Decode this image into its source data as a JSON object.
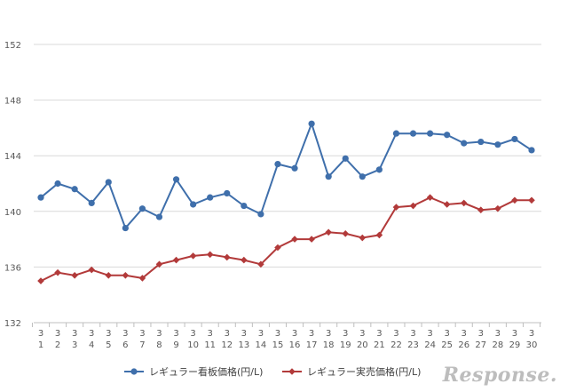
{
  "chart_data": {
    "type": "line",
    "categories": [
      "3\n1",
      "3\n2",
      "3\n3",
      "3\n4",
      "3\n5",
      "3\n6",
      "3\n7",
      "3\n8",
      "3\n9",
      "3\n10",
      "3\n11",
      "3\n12",
      "3\n13",
      "3\n14",
      "3\n15",
      "3\n16",
      "3\n17",
      "3\n18",
      "3\n19",
      "3\n20",
      "3\n21",
      "3\n22",
      "3\n23",
      "3\n24",
      "3\n25",
      "3\n26",
      "3\n27",
      "3\n28",
      "3\n29",
      "3\n30"
    ],
    "series": [
      {
        "name": "レギュラー看板価格(円/L)",
        "color": "#3f6fab",
        "marker": "circle",
        "values": [
          141.0,
          142.0,
          141.6,
          140.6,
          142.1,
          138.8,
          140.2,
          139.6,
          142.3,
          140.5,
          141.0,
          141.3,
          140.4,
          139.8,
          143.4,
          143.1,
          146.3,
          142.5,
          143.8,
          142.5,
          143.0,
          145.6,
          145.6,
          145.6,
          145.5,
          144.9,
          145.0,
          144.8,
          145.2,
          144.4
        ]
      },
      {
        "name": "レギュラー実売価格(円/L)",
        "color": "#b23a3a",
        "marker": "diamond",
        "values": [
          135.0,
          135.6,
          135.4,
          135.8,
          135.4,
          135.4,
          135.2,
          136.2,
          136.5,
          136.8,
          136.9,
          136.7,
          136.5,
          136.2,
          137.4,
          138.0,
          138.0,
          138.5,
          138.4,
          138.1,
          138.3,
          140.3,
          140.4,
          141.0,
          140.5,
          140.6,
          140.1,
          140.2,
          140.8,
          140.8
        ]
      }
    ],
    "ylim": [
      132,
      152
    ],
    "yticks": [
      "132",
      "136",
      "140",
      "144",
      "148",
      "152"
    ],
    "grid": true,
    "legend": "bottom"
  },
  "logo_text": "Response."
}
